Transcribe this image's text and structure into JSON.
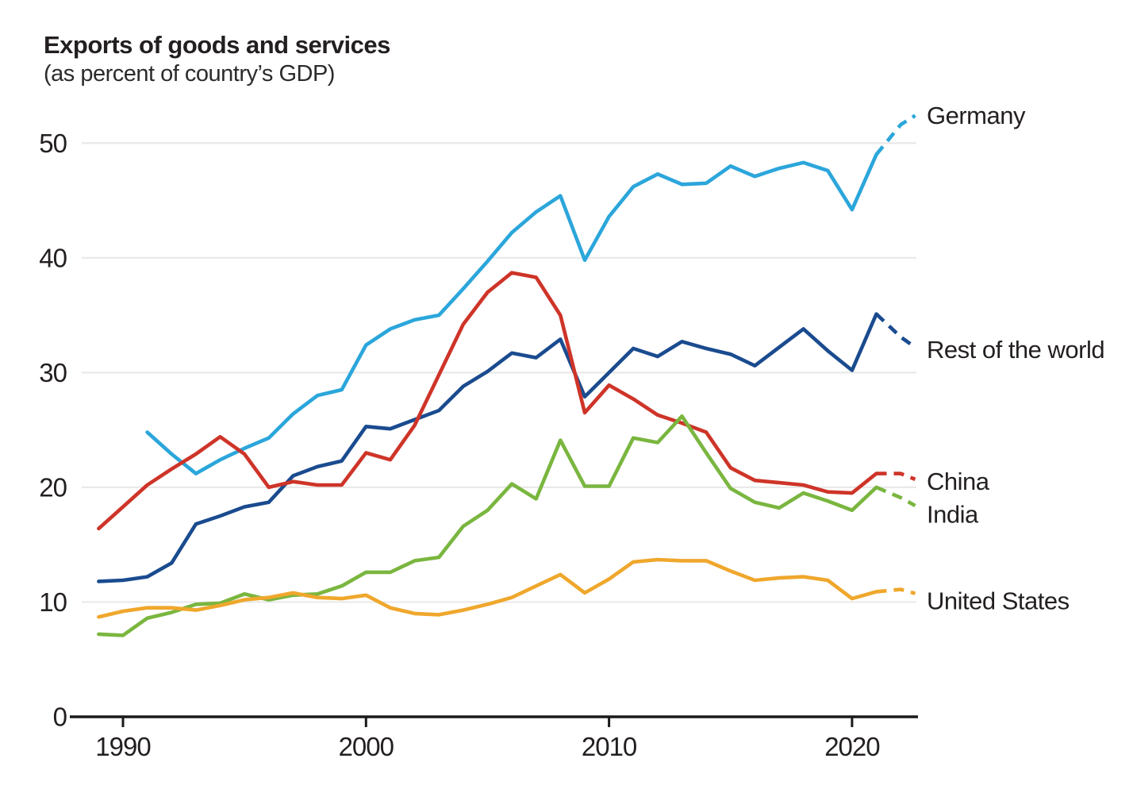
{
  "chart_data": {
    "type": "line",
    "title": "Exports of goods and services",
    "subtitle": "(as percent of country’s GDP)",
    "ylabel": "",
    "xlabel": "",
    "grid": true,
    "legend_position": "right-edge-labels",
    "y_ticks": [
      0,
      10,
      20,
      30,
      40,
      50
    ],
    "x_ticks": [
      1990,
      2000,
      2010,
      2020
    ],
    "x_range": [
      1987.9,
      2022.7
    ],
    "y_range": [
      0,
      52.8
    ],
    "projection_style": "dashed-after-2021",
    "colors": {
      "text": "#231F20",
      "grid": "#E9E9E9",
      "axis": "#1A1A1A",
      "background": "#FFFFFF"
    },
    "series": [
      {
        "name": "Germany",
        "label": "Germany",
        "color": "#2BA6DB",
        "dash_from": 2021,
        "label_value": 52.4,
        "points": [
          [
            1991,
            24.8
          ],
          [
            1992,
            22.9
          ],
          [
            1993,
            21.2
          ],
          [
            1994,
            22.4
          ],
          [
            1995,
            23.4
          ],
          [
            1996,
            24.3
          ],
          [
            1997,
            26.4
          ],
          [
            1998,
            28.0
          ],
          [
            1999,
            28.5
          ],
          [
            2000,
            32.4
          ],
          [
            2001,
            33.8
          ],
          [
            2002,
            34.6
          ],
          [
            2003,
            35.0
          ],
          [
            2004,
            37.3
          ],
          [
            2005,
            39.7
          ],
          [
            2006,
            42.2
          ],
          [
            2007,
            44.0
          ],
          [
            2008,
            45.4
          ],
          [
            2009,
            39.8
          ],
          [
            2010,
            43.6
          ],
          [
            2011,
            46.2
          ],
          [
            2012,
            47.3
          ],
          [
            2013,
            46.4
          ],
          [
            2014,
            46.5
          ],
          [
            2015,
            48.0
          ],
          [
            2016,
            47.1
          ],
          [
            2017,
            47.8
          ],
          [
            2018,
            48.3
          ],
          [
            2019,
            47.6
          ],
          [
            2020,
            44.2
          ],
          [
            2021,
            49.0
          ],
          [
            2022,
            51.6
          ],
          [
            2022.6,
            52.4
          ]
        ]
      },
      {
        "name": "Rest of the world",
        "label": "Rest of the world",
        "color": "#1A4B8F",
        "dash_from": 2021,
        "label_value": 32.0,
        "points": [
          [
            1989,
            11.8
          ],
          [
            1990,
            11.9
          ],
          [
            1991,
            12.2
          ],
          [
            1992,
            13.4
          ],
          [
            1993,
            16.8
          ],
          [
            1994,
            17.5
          ],
          [
            1995,
            18.3
          ],
          [
            1996,
            18.7
          ],
          [
            1997,
            21.0
          ],
          [
            1998,
            21.8
          ],
          [
            1999,
            22.3
          ],
          [
            2000,
            25.3
          ],
          [
            2001,
            25.1
          ],
          [
            2002,
            25.9
          ],
          [
            2003,
            26.7
          ],
          [
            2004,
            28.8
          ],
          [
            2005,
            30.1
          ],
          [
            2006,
            31.7
          ],
          [
            2007,
            31.3
          ],
          [
            2008,
            32.9
          ],
          [
            2009,
            27.9
          ],
          [
            2010,
            30.0
          ],
          [
            2011,
            32.1
          ],
          [
            2012,
            31.4
          ],
          [
            2013,
            32.7
          ],
          [
            2014,
            32.1
          ],
          [
            2015,
            31.6
          ],
          [
            2016,
            30.6
          ],
          [
            2017,
            32.2
          ],
          [
            2018,
            33.8
          ],
          [
            2019,
            31.9
          ],
          [
            2020,
            30.2
          ],
          [
            2021,
            35.1
          ],
          [
            2022,
            33.1
          ],
          [
            2022.6,
            32.2
          ]
        ]
      },
      {
        "name": "China",
        "label": "China",
        "color": "#CE3428",
        "dash_from": 2021,
        "label_value": 20.5,
        "points": [
          [
            1989,
            16.4
          ],
          [
            1990,
            18.3
          ],
          [
            1991,
            20.2
          ],
          [
            1992,
            21.6
          ],
          [
            1993,
            22.9
          ],
          [
            1994,
            24.4
          ],
          [
            1995,
            22.9
          ],
          [
            1996,
            20.0
          ],
          [
            1997,
            20.5
          ],
          [
            1998,
            20.2
          ],
          [
            1999,
            20.2
          ],
          [
            2000,
            23.0
          ],
          [
            2001,
            22.4
          ],
          [
            2002,
            25.4
          ],
          [
            2003,
            29.8
          ],
          [
            2004,
            34.2
          ],
          [
            2005,
            37.0
          ],
          [
            2006,
            38.7
          ],
          [
            2007,
            38.3
          ],
          [
            2008,
            35.0
          ],
          [
            2009,
            26.5
          ],
          [
            2010,
            28.9
          ],
          [
            2011,
            27.7
          ],
          [
            2012,
            26.3
          ],
          [
            2013,
            25.6
          ],
          [
            2014,
            24.8
          ],
          [
            2015,
            21.7
          ],
          [
            2016,
            20.6
          ],
          [
            2017,
            20.4
          ],
          [
            2018,
            20.2
          ],
          [
            2019,
            19.6
          ],
          [
            2020,
            19.5
          ],
          [
            2021,
            21.2
          ],
          [
            2022,
            21.2
          ],
          [
            2022.6,
            20.7
          ]
        ]
      },
      {
        "name": "India",
        "label": "India",
        "color": "#7AB63F",
        "dash_from": 2021,
        "label_value": 17.65,
        "points": [
          [
            1989,
            7.2
          ],
          [
            1990,
            7.1
          ],
          [
            1991,
            8.6
          ],
          [
            1992,
            9.1
          ],
          [
            1993,
            9.8
          ],
          [
            1994,
            9.9
          ],
          [
            1995,
            10.7
          ],
          [
            1996,
            10.2
          ],
          [
            1997,
            10.6
          ],
          [
            1998,
            10.7
          ],
          [
            1999,
            11.4
          ],
          [
            2000,
            12.6
          ],
          [
            2001,
            12.6
          ],
          [
            2002,
            13.6
          ],
          [
            2003,
            13.9
          ],
          [
            2004,
            16.6
          ],
          [
            2005,
            18.0
          ],
          [
            2006,
            20.3
          ],
          [
            2007,
            19.0
          ],
          [
            2008,
            24.1
          ],
          [
            2009,
            20.1
          ],
          [
            2010,
            20.1
          ],
          [
            2011,
            24.3
          ],
          [
            2012,
            23.9
          ],
          [
            2013,
            26.2
          ],
          [
            2014,
            23.0
          ],
          [
            2015,
            19.9
          ],
          [
            2016,
            18.7
          ],
          [
            2017,
            18.2
          ],
          [
            2018,
            19.5
          ],
          [
            2019,
            18.8
          ],
          [
            2020,
            18.0
          ],
          [
            2021,
            20.0
          ],
          [
            2022,
            19.1
          ],
          [
            2022.6,
            18.4
          ]
        ]
      },
      {
        "name": "United States",
        "label": "United States",
        "color": "#EFA72C",
        "dash_from": 2021,
        "label_value": 10.1,
        "points": [
          [
            1989,
            8.7
          ],
          [
            1990,
            9.2
          ],
          [
            1991,
            9.5
          ],
          [
            1992,
            9.5
          ],
          [
            1993,
            9.3
          ],
          [
            1994,
            9.7
          ],
          [
            1995,
            10.2
          ],
          [
            1996,
            10.4
          ],
          [
            1997,
            10.8
          ],
          [
            1998,
            10.4
          ],
          [
            1999,
            10.3
          ],
          [
            2000,
            10.6
          ],
          [
            2001,
            9.5
          ],
          [
            2002,
            9.0
          ],
          [
            2003,
            8.9
          ],
          [
            2004,
            9.3
          ],
          [
            2005,
            9.8
          ],
          [
            2006,
            10.4
          ],
          [
            2007,
            11.4
          ],
          [
            2008,
            12.4
          ],
          [
            2009,
            10.8
          ],
          [
            2010,
            12.0
          ],
          [
            2011,
            13.5
          ],
          [
            2012,
            13.7
          ],
          [
            2013,
            13.6
          ],
          [
            2014,
            13.6
          ],
          [
            2015,
            12.7
          ],
          [
            2016,
            11.9
          ],
          [
            2017,
            12.1
          ],
          [
            2018,
            12.2
          ],
          [
            2019,
            11.9
          ],
          [
            2020,
            10.3
          ],
          [
            2021,
            10.9
          ],
          [
            2022,
            11.1
          ],
          [
            2022.6,
            10.75
          ]
        ]
      }
    ]
  }
}
